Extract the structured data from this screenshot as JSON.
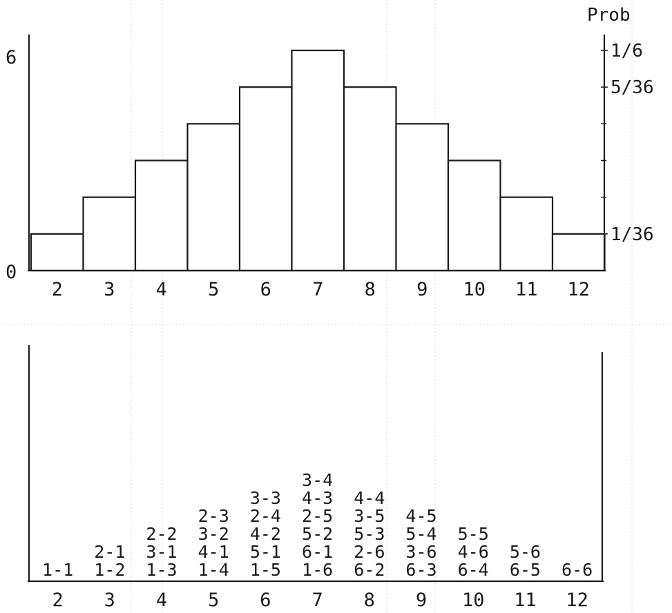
{
  "chart_data": [
    {
      "type": "bar",
      "categories": [
        "2",
        "3",
        "4",
        "5",
        "6",
        "7",
        "8",
        "9",
        "10",
        "11",
        "12"
      ],
      "values": [
        1,
        2,
        3,
        4,
        5,
        6,
        5,
        4,
        3,
        2,
        1
      ],
      "ylim": [
        0,
        6
      ],
      "left_tick_labels": [
        "0",
        "6"
      ],
      "right_axis_title": "Prob",
      "right_tick_labels": [
        {
          "label": "1/6",
          "value": 6
        },
        {
          "label": "5/36",
          "value": 5
        },
        {
          "label": "1/36",
          "value": 1
        }
      ],
      "grid": false
    },
    {
      "type": "table",
      "categories": [
        "2",
        "3",
        "4",
        "5",
        "6",
        "7",
        "8",
        "9",
        "10",
        "11",
        "12"
      ],
      "columns": [
        [
          "1-1"
        ],
        [
          "1-2",
          "2-1"
        ],
        [
          "1-3",
          "3-1",
          "2-2"
        ],
        [
          "1-4",
          "4-1",
          "3-2",
          "2-3"
        ],
        [
          "1-5",
          "5-1",
          "4-2",
          "2-4",
          "3-3"
        ],
        [
          "1-6",
          "6-1",
          "5-2",
          "2-5",
          "4-3",
          "3-4"
        ],
        [
          "6-2",
          "2-6",
          "5-3",
          "3-5",
          "4-4"
        ],
        [
          "6-3",
          "3-6",
          "5-4",
          "4-5"
        ],
        [
          "6-4",
          "4-6",
          "5-5"
        ],
        [
          "6-5",
          "5-6"
        ],
        [
          "6-6"
        ]
      ]
    }
  ]
}
